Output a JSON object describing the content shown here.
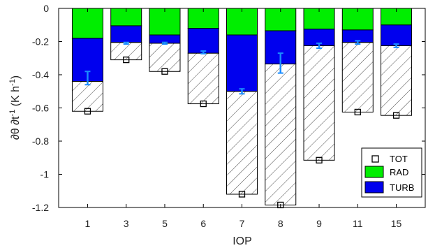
{
  "chart_data": {
    "type": "bar",
    "xlabel": "IOP",
    "ylabel": "∂θ ∂t⁻¹ (K h⁻¹)",
    "ylabel_parts": {
      "main": "∂θ ∂t",
      "exp1": "-1",
      "units_open": " (K h",
      "exp2": "-1",
      "units_close": ")"
    },
    "ylim": [
      -1.2,
      0
    ],
    "yticks": [
      0,
      -0.2,
      -0.4,
      -0.6,
      -0.8,
      -1,
      -1.2
    ],
    "ytick_labels": [
      "0",
      "-0.2",
      "-0.4",
      "-0.6",
      "-0.8",
      "-1",
      "-1.2"
    ],
    "categories": [
      "1",
      "3",
      "5",
      "6",
      "7",
      "8",
      "9",
      "11",
      "15"
    ],
    "series": [
      {
        "name": "RAD",
        "values": [
          -0.18,
          -0.105,
          -0.16,
          -0.12,
          -0.16,
          -0.135,
          -0.125,
          -0.13,
          -0.1
        ],
        "color": "#00ee00"
      },
      {
        "name": "TURB",
        "values": [
          -0.26,
          -0.1,
          -0.05,
          -0.15,
          -0.34,
          -0.2,
          -0.1,
          -0.075,
          -0.125
        ],
        "color": "#0000ee"
      },
      {
        "name": "TOT",
        "values": [
          -0.62,
          -0.31,
          -0.38,
          -0.575,
          -1.12,
          -1.185,
          -0.915,
          -0.625,
          -0.645
        ],
        "marker": "square"
      }
    ],
    "error_bars": [
      {
        "center": -0.42,
        "half": 0.04
      },
      {
        "center": -0.21,
        "half": 0.005
      },
      {
        "center": -0.21,
        "half": 0.005
      },
      {
        "center": -0.265,
        "half": 0.008
      },
      {
        "center": -0.5,
        "half": 0.015
      },
      {
        "center": -0.33,
        "half": 0.06
      },
      {
        "center": -0.225,
        "half": 0.015
      },
      {
        "center": -0.205,
        "half": 0.01
      },
      {
        "center": -0.225,
        "half": 0.01
      }
    ],
    "hatch": "diagonal hatching between RAD+TURB and TOT",
    "legend": {
      "position": "bottom-right",
      "entries": [
        "TOT",
        "RAD",
        "TURB"
      ]
    },
    "grid": false,
    "colors": {
      "rad": "#00ee00",
      "turb": "#0000ee",
      "errorbar": "#1a8cff",
      "hatch": "#333333"
    }
  }
}
